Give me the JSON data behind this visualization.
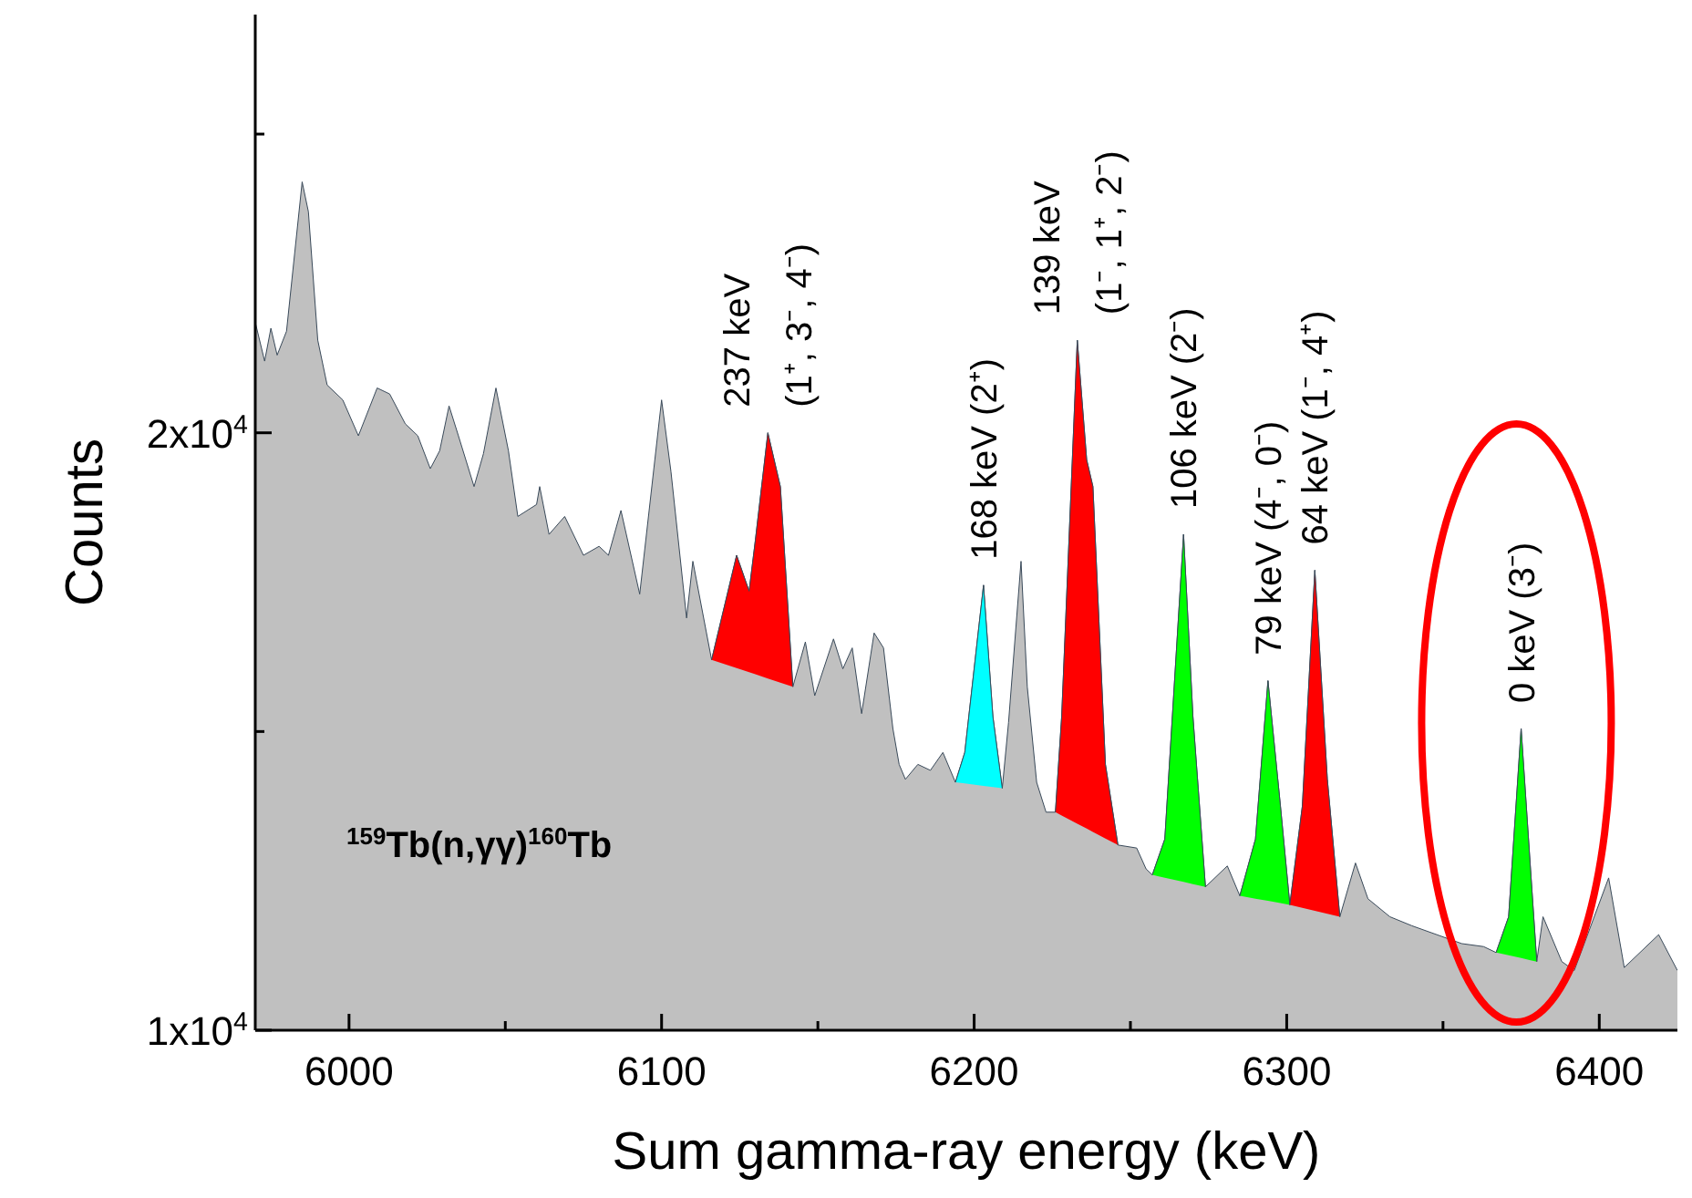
{
  "chart_data": {
    "type": "area",
    "xlabel": "Sum gamma-ray energy  (keV)",
    "ylabel": "Counts",
    "xlim": [
      5970,
      6425
    ],
    "ylim": [
      10000,
      27000
    ],
    "xticks": [
      6000,
      {
        "value": 6050,
        "label": null
      },
      6100,
      {
        "value": 6150,
        "label": null
      },
      6200,
      {
        "value": 6250,
        "label": null
      },
      6300,
      {
        "value": 6350,
        "label": null
      },
      6400
    ],
    "yticks": [
      {
        "value": 10000,
        "label": "1x10$^{4}$"
      },
      {
        "value": 15000,
        "label": null
      },
      {
        "value": 20000,
        "label": "2x10$^{4}$"
      },
      {
        "value": 25000,
        "label": null
      }
    ],
    "grid": false,
    "series": [
      {
        "color": "#c0c0c0",
        "x": [
          5970,
          5973,
          5975,
          5977,
          5980,
          5983,
          5985,
          5987,
          5990,
          5993,
          5998,
          6003,
          6009,
          6013,
          6018,
          6022,
          6026,
          6029,
          6032,
          6035,
          6040,
          6043,
          6047,
          6051,
          6054,
          6060,
          6061,
          6064,
          6069,
          6075,
          6080,
          6083,
          6087,
          6093,
          6100,
          6103,
          6108,
          6110,
          6116,
          6124,
          6128,
          6130,
          6134,
          6138,
          6142,
          6146,
          6149,
          6155,
          6158,
          6161,
          6164,
          6168,
          6171,
          6174,
          6176,
          6178,
          6182,
          6186,
          6190,
          6194,
          6197,
          6203,
          6206,
          6209,
          6211,
          6215,
          6217,
          6220,
          6223,
          6226,
          6228,
          6233,
          6236,
          6238,
          6242,
          6246,
          6252,
          6255,
          6257,
          6261,
          6267,
          6270,
          6274,
          6281,
          6285,
          6290,
          6294,
          6298,
          6301,
          6305,
          6309,
          6313,
          6317,
          6322,
          6326,
          6333,
          6340,
          6348,
          6356,
          6363,
          6367,
          6371,
          6375,
          6378,
          6380,
          6382,
          6388,
          6392,
          6403,
          6408,
          6419,
          6425
        ],
        "values": [
          21850,
          21200,
          21750,
          21300,
          21700,
          23200,
          24200,
          23700,
          21550,
          20800,
          20550,
          19950,
          20750,
          20650,
          20150,
          19950,
          19400,
          19700,
          20450,
          19950,
          19100,
          19650,
          20750,
          19700,
          18600,
          18800,
          19100,
          18300,
          18600,
          17950,
          18100,
          17950,
          18700,
          17300,
          20550,
          19350,
          16900,
          17850,
          16200,
          17950,
          17350,
          18200,
          20000,
          19100,
          15750,
          16500,
          15600,
          16550,
          16050,
          16400,
          15300,
          16650,
          16400,
          15050,
          14450,
          14200,
          14450,
          14350,
          14650,
          14150,
          14650,
          17450,
          15250,
          14050,
          15150,
          17850,
          15750,
          14150,
          13650,
          13650,
          15250,
          21550,
          19550,
          19100,
          14450,
          13100,
          13050,
          12700,
          12600,
          13200,
          18300,
          15250,
          12400,
          12750,
          12250,
          13200,
          15850,
          13750,
          12100,
          13750,
          17700,
          14200,
          11900,
          12800,
          12200,
          11900,
          11750,
          11600,
          11450,
          11400,
          11300,
          11900,
          15050,
          12700,
          11150,
          11900,
          11150,
          11000,
          12550,
          11050,
          11600,
          11000
        ]
      },
      {
        "type": "area",
        "color": "#ff0000",
        "x": [
          6116,
          6124,
          6128,
          6130,
          6134,
          6138,
          6142
        ],
        "values": [
          16200,
          17950,
          17350,
          18200,
          20000,
          19100,
          15750
        ]
      },
      {
        "type": "area",
        "color": "#00ffff",
        "x": [
          6194,
          6197,
          6203,
          6206,
          6209
        ],
        "values": [
          14150,
          14650,
          17450,
          15250,
          14050
        ]
      },
      {
        "type": "area",
        "color": "#ff0000",
        "x": [
          6226,
          6228,
          6233,
          6236,
          6238,
          6242,
          6246
        ],
        "values": [
          13650,
          15250,
          21550,
          19550,
          19100,
          14450,
          13100
        ]
      },
      {
        "type": "area",
        "color": "#00ff00",
        "x": [
          6257,
          6261,
          6267,
          6270,
          6274
        ],
        "values": [
          12600,
          13200,
          18300,
          15250,
          12400
        ]
      },
      {
        "type": "area",
        "color": "#00ff00",
        "x": [
          6285,
          6290,
          6294,
          6298,
          6301
        ],
        "values": [
          12250,
          13200,
          15850,
          13750,
          12100
        ]
      },
      {
        "type": "area",
        "color": "#ff0000",
        "x": [
          6301,
          6305,
          6309,
          6313,
          6317
        ],
        "values": [
          12100,
          13750,
          17700,
          14200,
          11900
        ]
      },
      {
        "type": "area",
        "color": "#00ff00",
        "x": [
          6367,
          6371,
          6375,
          6378,
          6380
        ],
        "values": [
          11300,
          11900,
          15050,
          12700,
          11150
        ]
      }
    ],
    "annotations": [
      {
        "text": "237 keV\n(1⁺, 3⁻, 4⁻)",
        "x": 6134,
        "y": 20000
      },
      {
        "text": "168 keV  (2⁺)",
        "x": 6203,
        "y": 17450
      },
      {
        "text": "139 keV\n(1⁻, 1⁺, 2⁻)",
        "x": 6233,
        "y": 21550
      },
      {
        "text": "106 keV  (2⁻)",
        "x": 6267,
        "y": 18300
      },
      {
        "text": "79 keV  (4⁻, 0⁻)",
        "x": 6294,
        "y": 15850
      },
      {
        "text": "64 keV (1⁻, 4⁺)",
        "x": 6309,
        "y": 17700
      },
      {
        "text": "0 keV  (3⁻)",
        "x": 6375,
        "y": 15050
      },
      "$^{159}$Tb(n,γγ)$^{160}$Tb"
    ]
  }
}
